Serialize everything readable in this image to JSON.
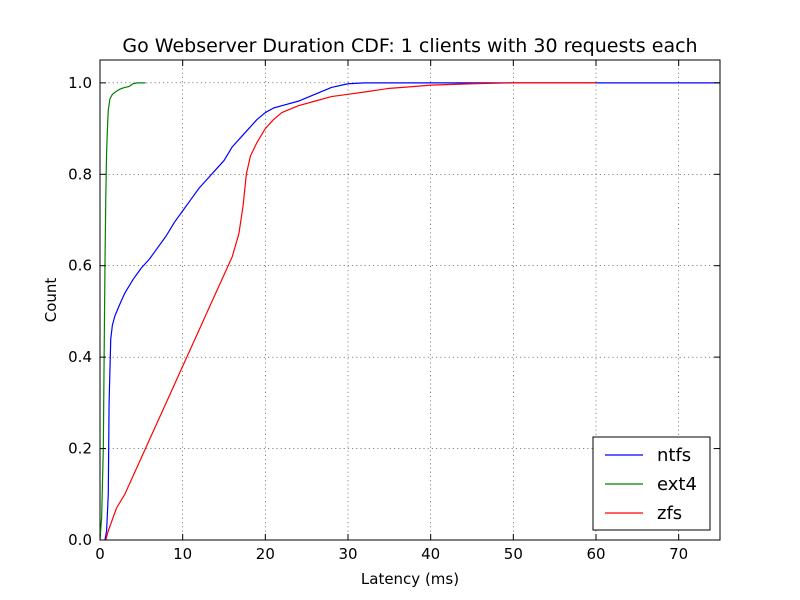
{
  "chart_data": {
    "type": "line",
    "title": "Go Webserver Duration CDF: 1 clients with 30 requests each",
    "xlabel": "Latency (ms)",
    "ylabel": "Count",
    "xlim": [
      0,
      75
    ],
    "ylim": [
      0,
      1.05
    ],
    "xticks": [
      0,
      10,
      20,
      30,
      40,
      50,
      60,
      70
    ],
    "yticks": [
      0.0,
      0.2,
      0.4,
      0.6,
      0.8,
      1.0
    ],
    "xtick_labels": [
      "0",
      "10",
      "20",
      "30",
      "40",
      "50",
      "60",
      "70"
    ],
    "ytick_labels": [
      "0.0",
      "0.2",
      "0.4",
      "0.6",
      "0.8",
      "1.0"
    ],
    "grid": true,
    "legend_position": "bottom-right",
    "series": [
      {
        "name": "ntfs",
        "color": "#0000ff",
        "x": [
          0.6,
          0.8,
          1.0,
          1.1,
          1.3,
          1.5,
          1.8,
          2.5,
          3.0,
          4.0,
          5.0,
          6.0,
          7.0,
          8.0,
          9.0,
          10.0,
          11.0,
          12.0,
          13.0,
          14.0,
          15.0,
          16.0,
          17.0,
          18.0,
          19.0,
          20.0,
          21.0,
          22.0,
          24.0,
          26.0,
          28.0,
          30.0,
          32.0,
          35.0,
          40.0,
          50.0,
          60.0,
          75.0
        ],
        "values": [
          0.0,
          0.02,
          0.1,
          0.3,
          0.44,
          0.47,
          0.49,
          0.52,
          0.54,
          0.57,
          0.595,
          0.615,
          0.64,
          0.665,
          0.695,
          0.72,
          0.745,
          0.77,
          0.79,
          0.81,
          0.83,
          0.86,
          0.88,
          0.9,
          0.92,
          0.935,
          0.945,
          0.95,
          0.96,
          0.975,
          0.99,
          0.998,
          1.0,
          1.0,
          1.0,
          1.0,
          1.0,
          1.0
        ]
      },
      {
        "name": "ext4",
        "color": "#008000",
        "x": [
          0.0,
          0.2,
          0.4,
          0.5,
          0.6,
          0.7,
          0.8,
          0.9,
          1.0,
          1.2,
          1.5,
          2.0,
          2.5,
          3.0,
          3.5,
          4.0,
          4.5,
          5.0,
          5.5
        ],
        "values": [
          0.0,
          0.05,
          0.2,
          0.4,
          0.6,
          0.75,
          0.85,
          0.9,
          0.94,
          0.965,
          0.975,
          0.982,
          0.987,
          0.99,
          0.992,
          0.998,
          1.0,
          1.0,
          1.0
        ]
      },
      {
        "name": "zfs",
        "color": "#ff0000",
        "x": [
          0.7,
          1.0,
          1.5,
          2.0,
          3.0,
          4.0,
          5.0,
          6.0,
          7.0,
          8.0,
          9.0,
          10.0,
          11.0,
          12.0,
          13.0,
          14.0,
          15.0,
          16.0,
          16.8,
          17.3,
          17.7,
          18.2,
          19.0,
          20.0,
          21.0,
          22.0,
          24.0,
          26.0,
          28.0,
          30.0,
          32.0,
          35.0,
          38.0,
          40.0,
          45.0,
          50.0,
          55.0,
          60.0
        ],
        "values": [
          0.0,
          0.02,
          0.045,
          0.07,
          0.1,
          0.14,
          0.18,
          0.22,
          0.26,
          0.3,
          0.34,
          0.38,
          0.42,
          0.46,
          0.5,
          0.54,
          0.58,
          0.62,
          0.67,
          0.73,
          0.8,
          0.84,
          0.87,
          0.9,
          0.92,
          0.935,
          0.95,
          0.96,
          0.97,
          0.975,
          0.98,
          0.988,
          0.992,
          0.995,
          0.998,
          1.0,
          1.0,
          1.0
        ]
      }
    ]
  }
}
